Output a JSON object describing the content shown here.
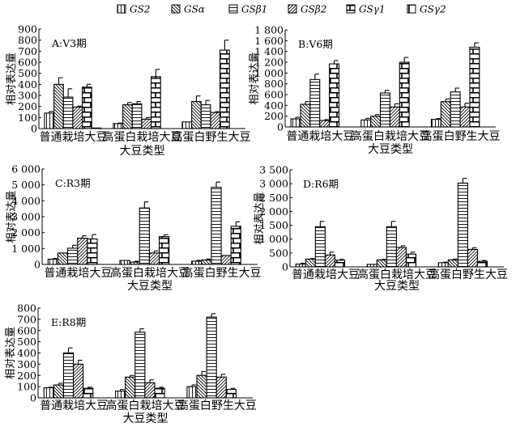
{
  "legend": [
    "GS2",
    "GSα",
    "GSβ1",
    "GSβ2",
    "GSγ1",
    "GSγ2"
  ],
  "chart_data": [
    {
      "type": "bar",
      "title": "A:V3期",
      "xlabel": "大豆类型",
      "ylabel": "相对表达量",
      "ylim": [
        0,
        900
      ],
      "yticks": [
        "0",
        "100",
        "200",
        "300",
        "400",
        "500",
        "600",
        "700",
        "800",
        "900"
      ],
      "ytick_values": [
        0,
        100,
        200,
        300,
        400,
        500,
        600,
        700,
        800,
        900
      ],
      "categories": [
        "普通栽培大豆",
        "高蛋白栽培大豆",
        "高蛋白野生大豆"
      ],
      "series": [
        {
          "name": "GS2",
          "values": [
            140,
            45,
            60
          ],
          "errors": [
            15,
            5,
            0
          ]
        },
        {
          "name": "GSα",
          "values": [
            400,
            215,
            245
          ],
          "errors": [
            60,
            20,
            50
          ]
        },
        {
          "name": "GSβ1",
          "values": [
            285,
            225,
            215
          ],
          "errors": [
            75,
            20,
            40
          ]
        },
        {
          "name": "GSβ2",
          "values": [
            195,
            85,
            145
          ],
          "errors": [
            8,
            15,
            8
          ]
        },
        {
          "name": "GSγ1",
          "values": [
            375,
            470,
            710
          ],
          "errors": [
            25,
            65,
            90
          ]
        },
        {
          "name": "GSγ2",
          "values": [
            5,
            0,
            0
          ],
          "errors": [
            0,
            0,
            0
          ]
        }
      ]
    },
    {
      "type": "bar",
      "title": "B:V6期",
      "xlabel": "大豆类型",
      "ylabel": "相对表达量",
      "ylim": [
        0,
        1800
      ],
      "yticks": [
        "0",
        "200",
        "400",
        "600",
        "800",
        "1 000",
        "1 200",
        "1 400",
        "1 600",
        "1 800"
      ],
      "ytick_values": [
        0,
        200,
        400,
        600,
        800,
        1000,
        1200,
        1400,
        1600,
        1800
      ],
      "categories": [
        "普通栽培大豆",
        "高蛋白栽培大豆",
        "高蛋白野生大豆"
      ],
      "series": [
        {
          "name": "GS2",
          "values": [
            150,
            130,
            140
          ],
          "errors": [
            30,
            30,
            15
          ]
        },
        {
          "name": "GSα",
          "values": [
            420,
            200,
            470
          ],
          "errors": [
            50,
            30,
            50
          ]
        },
        {
          "name": "GSβ1",
          "values": [
            880,
            630,
            650
          ],
          "errors": [
            100,
            50,
            70
          ]
        },
        {
          "name": "GSβ2",
          "values": [
            120,
            370,
            370
          ],
          "errors": [
            15,
            60,
            70
          ]
        },
        {
          "name": "GSγ1",
          "values": [
            1170,
            1200,
            1480
          ],
          "errors": [
            60,
            90,
            80
          ]
        },
        {
          "name": "GSγ2",
          "values": [
            0,
            0,
            0
          ],
          "errors": [
            0,
            0,
            0
          ]
        }
      ]
    },
    {
      "type": "bar",
      "title": "C:R3期",
      "xlabel": "大豆类型",
      "ylabel": "相对表达量",
      "ylim": [
        0,
        6000
      ],
      "yticks": [
        "0",
        "1 000",
        "2 000",
        "3 000",
        "4 000",
        "5 000",
        "6 000"
      ],
      "ytick_values": [
        0,
        1000,
        2000,
        3000,
        4000,
        5000,
        6000
      ],
      "categories": [
        "普通栽培大豆",
        "高蛋白栽培大豆",
        "高蛋白野生大豆"
      ],
      "series": [
        {
          "name": "GS2",
          "values": [
            330,
            250,
            200
          ],
          "errors": [
            40,
            0,
            60
          ]
        },
        {
          "name": "GSα",
          "values": [
            720,
            150,
            280
          ],
          "errors": [
            0,
            50,
            60
          ]
        },
        {
          "name": "GSβ1",
          "values": [
            1020,
            3550,
            4850
          ],
          "errors": [
            180,
            380,
            330
          ]
        },
        {
          "name": "GSβ2",
          "values": [
            1650,
            720,
            560
          ],
          "errors": [
            150,
            130,
            0
          ]
        },
        {
          "name": "GSγ1",
          "values": [
            1600,
            1750,
            2400
          ],
          "errors": [
            280,
            120,
            280
          ]
        },
        {
          "name": "GSγ2",
          "values": [
            0,
            0,
            0
          ],
          "errors": [
            0,
            0,
            0
          ]
        }
      ]
    },
    {
      "type": "bar",
      "title": "D:R6期",
      "xlabel": "大豆类型",
      "ylabel": "相对表达量",
      "ylim": [
        0,
        3500
      ],
      "yticks": [
        "0",
        "500",
        "1 000",
        "1 500",
        "2 000",
        "2 500",
        "3 000",
        "3 500"
      ],
      "ytick_values": [
        0,
        500,
        1000,
        1500,
        2000,
        2500,
        3000,
        3500
      ],
      "categories": [
        "普通栽培大豆",
        "高蛋白栽培大豆",
        "高蛋白野生大豆"
      ],
      "series": [
        {
          "name": "GS2",
          "values": [
            100,
            90,
            150
          ],
          "errors": [
            30,
            0,
            20
          ]
        },
        {
          "name": "GSα",
          "values": [
            280,
            250,
            250
          ],
          "errors": [
            20,
            20,
            30
          ]
        },
        {
          "name": "GSβ1",
          "values": [
            1450,
            1450,
            3020
          ],
          "errors": [
            190,
            190,
            170
          ]
        },
        {
          "name": "GSβ2",
          "values": [
            430,
            700,
            630
          ],
          "errors": [
            100,
            60,
            60
          ]
        },
        {
          "name": "GSγ1",
          "values": [
            240,
            460,
            200
          ],
          "errors": [
            30,
            70,
            30
          ]
        },
        {
          "name": "GSγ2",
          "values": [
            0,
            0,
            0
          ],
          "errors": [
            0,
            0,
            0
          ]
        }
      ]
    },
    {
      "type": "bar",
      "title": "E:R8期",
      "xlabel": "大豆类型",
      "ylabel": "相对表达量",
      "ylim": [
        0,
        800
      ],
      "yticks": [
        "0",
        "100",
        "200",
        "300",
        "400",
        "500",
        "600",
        "700",
        "800"
      ],
      "ytick_values": [
        0,
        100,
        200,
        300,
        400,
        500,
        600,
        700,
        800
      ],
      "categories": [
        "普通栽培大豆",
        "高蛋白栽培大豆",
        "高蛋白野生大豆"
      ],
      "series": [
        {
          "name": "GS2",
          "values": [
            90,
            60,
            100
          ],
          "errors": [
            5,
            15,
            15
          ]
        },
        {
          "name": "GSα",
          "values": [
            115,
            185,
            200
          ],
          "errors": [
            15,
            15,
            35
          ]
        },
        {
          "name": "GSβ1",
          "values": [
            400,
            585,
            720
          ],
          "errors": [
            45,
            30,
            30
          ]
        },
        {
          "name": "GSβ2",
          "values": [
            300,
            135,
            185
          ],
          "errors": [
            35,
            25,
            25
          ]
        },
        {
          "name": "GSγ1",
          "values": [
            85,
            85,
            75
          ],
          "errors": [
            10,
            10,
            10
          ]
        },
        {
          "name": "GSγ2",
          "values": [
            0,
            0,
            0
          ],
          "errors": [
            0,
            0,
            0
          ]
        }
      ]
    }
  ]
}
